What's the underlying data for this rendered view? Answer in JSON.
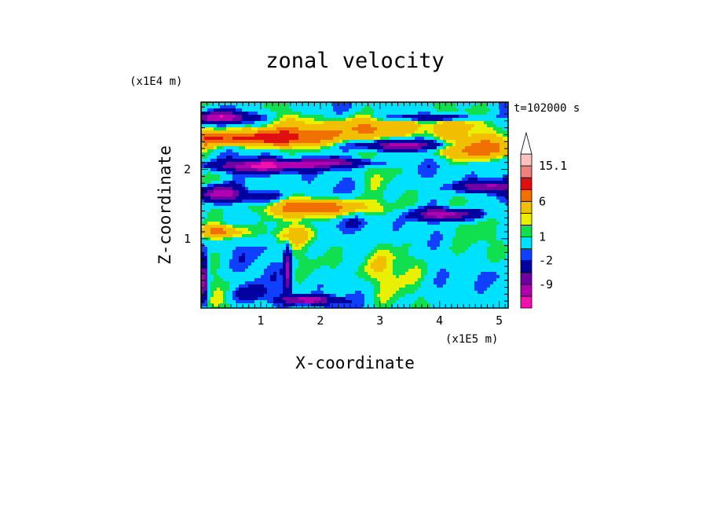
{
  "chart_data": {
    "type": "heatmap",
    "title": "zonal velocity",
    "xlabel": "X-coordinate",
    "ylabel": "Z-coordinate",
    "x_scale_label": "(x1E5 m)",
    "y_scale_label": "(x1E4 m)",
    "time_label": "t=102000 s",
    "xlim": [
      0,
      5.15
    ],
    "ylim": [
      0,
      2.97
    ],
    "x_ticks": [
      "1",
      "2",
      "3",
      "4",
      "5"
    ],
    "x_tick_values": [
      1,
      2,
      3,
      4,
      5
    ],
    "y_ticks": [
      "1",
      "2"
    ],
    "y_tick_values": [
      1,
      2
    ],
    "colorbar": {
      "levels": [
        -15.1,
        -12,
        -9,
        -6,
        -2,
        -1,
        1,
        2,
        3,
        6,
        9,
        12,
        15.1
      ],
      "colors": [
        "#f010b0",
        "#b000b0",
        "#7000a0",
        "#0000a0",
        "#1040ff",
        "#00e0ff",
        "#10e050",
        "#e8f000",
        "#f0c000",
        "#f07000",
        "#e01010",
        "#f08080",
        "#ffc0c0"
      ],
      "tick_labels": [
        "15.1",
        "6",
        "1",
        "-2",
        "-9"
      ],
      "tick_values": [
        15.1,
        6,
        1,
        -2,
        -9
      ],
      "extend_top": true
    },
    "grid": false
  }
}
